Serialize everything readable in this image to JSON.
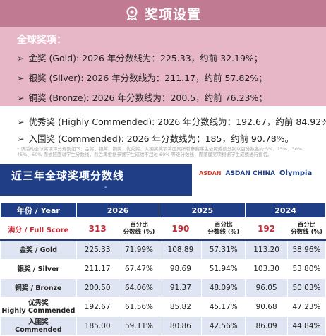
{
  "banner": {
    "title": "奖项设置",
    "icon": "award-badge-icon"
  },
  "global": {
    "label": "全球奖项：",
    "lines": [
      "金奖 (Gold): 2026 年分数线为：225.33，约前 32.19%；",
      "银奖 (Silver): 2026 年分数线为：211.17，约前 57.82%；",
      "铜奖 (Bronze): 2026 年分数线为：200.5，约前 76.23%；",
      "优秀奖 (Highly Commended): 2026 年分数线为：192.67，约前 84.92%；",
      "入围奖 (Commended): 2026 年分数线为：185，约前 90.78%。"
    ],
    "footnote": "* 该活动全球奖项评分规则如下：金奖、银奖、铜奖、优秀奖、入围奖奖项将面向所有参赛学生依照成绩分别以百分数名约 5%、15%、30%、45%、60% 而依照面试学生分数线，然后再根据参赛学生成绩不超过 60% 等级分数线，而落届奖项根据学生成绩进行排名。"
  },
  "table_section": {
    "title": "近三年全球奖项分数线",
    "dash": "-",
    "logos": [
      "ASDAN",
      "ASDAN CHINA",
      "Olympia"
    ]
  },
  "table": {
    "header_year": "年份 / Year",
    "years": [
      "2026",
      "2025",
      "2024"
    ],
    "full_score_label": "满分 / Full Score",
    "full_scores": [
      "313",
      "190",
      "192"
    ],
    "pct_header_1": "百分比",
    "pct_header_2": "分数线 (%)",
    "rows": [
      {
        "label_cn": "金奖 / Gold",
        "label_en": "",
        "v": [
          "225.33",
          "71.99%",
          "108.89",
          "57.31%",
          "113.20",
          "58.96%"
        ]
      },
      {
        "label_cn": "银奖 / Silver",
        "label_en": "",
        "v": [
          "211.17",
          "67.47%",
          "98.69",
          "51.94%",
          "103.30",
          "53.80%"
        ]
      },
      {
        "label_cn": "铜奖 / Bronze",
        "label_en": "",
        "v": [
          "200.50",
          "64.06%",
          "91.37",
          "48.09%",
          "96.05",
          "50.03%"
        ]
      },
      {
        "label_cn": "优秀奖",
        "label_en": "Highly Commended",
        "v": [
          "192.67",
          "61.56%",
          "85.82",
          "45.17%",
          "90.68",
          "47.23%"
        ]
      },
      {
        "label_cn": "入围奖",
        "label_en": "Commended",
        "v": [
          "185.00",
          "59.11%",
          "80.86",
          "42.56%",
          "86.09",
          "44.84%"
        ]
      }
    ]
  }
}
